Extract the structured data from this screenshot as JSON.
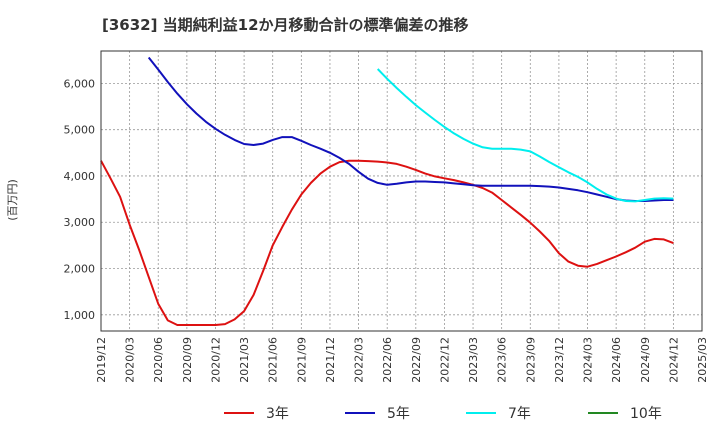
{
  "chart_data": {
    "type": "line",
    "title": "[3632]  当期純利益12か月移動合計の標準偏差の推移",
    "ylabel": "(百万円)",
    "xlabel": "",
    "ylim": [
      650,
      6700
    ],
    "xlim": [
      "2019/12",
      "2025/03"
    ],
    "yticks": [
      1000,
      2000,
      3000,
      4000,
      5000,
      6000
    ],
    "ytick_labels": [
      "1,000",
      "2,000",
      "3,000",
      "4,000",
      "5,000",
      "6,000"
    ],
    "xtick_labels": [
      "2019/12",
      "2020/03",
      "2020/06",
      "2020/09",
      "2020/12",
      "2021/03",
      "2021/06",
      "2021/09",
      "2021/12",
      "2022/03",
      "2022/06",
      "2022/09",
      "2022/12",
      "2023/03",
      "2023/06",
      "2023/09",
      "2023/12",
      "2024/03",
      "2024/06",
      "2024/09",
      "2024/12",
      "2025/03"
    ],
    "grid": true,
    "legend_position": "bottom",
    "series": [
      {
        "name": "3年",
        "color": "#dd1111",
        "x": [
          "2019/12",
          "2020/01",
          "2020/02",
          "2020/03",
          "2020/04",
          "2020/05",
          "2020/06",
          "2020/07",
          "2020/08",
          "2020/09",
          "2020/10",
          "2020/11",
          "2020/12",
          "2021/01",
          "2021/02",
          "2021/03",
          "2021/04",
          "2021/05",
          "2021/06",
          "2021/07",
          "2021/08",
          "2021/09",
          "2021/10",
          "2021/11",
          "2021/12",
          "2022/01",
          "2022/02",
          "2022/03",
          "2022/04",
          "2022/05",
          "2022/06",
          "2022/07",
          "2022/08",
          "2022/09",
          "2022/10",
          "2022/11",
          "2022/12",
          "2023/01",
          "2023/02",
          "2023/03",
          "2023/04",
          "2023/05",
          "2023/06",
          "2023/07",
          "2023/08",
          "2023/09",
          "2023/10",
          "2023/11",
          "2023/12",
          "2024/01",
          "2024/02",
          "2024/03",
          "2024/04",
          "2024/05",
          "2024/06",
          "2024/07",
          "2024/08",
          "2024/09",
          "2024/10",
          "2024/11",
          "2024/12"
        ],
        "values": [
          4330,
          3950,
          3550,
          2950,
          2400,
          1820,
          1240,
          880,
          780,
          780,
          780,
          780,
          780,
          800,
          900,
          1080,
          1430,
          1950,
          2500,
          2900,
          3270,
          3600,
          3850,
          4050,
          4200,
          4300,
          4330,
          4330,
          4320,
          4310,
          4290,
          4260,
          4200,
          4130,
          4050,
          3990,
          3950,
          3910,
          3860,
          3810,
          3740,
          3640,
          3480,
          3320,
          3160,
          2990,
          2800,
          2590,
          2330,
          2150,
          2060,
          2040,
          2100,
          2180,
          2260,
          2350,
          2450,
          2580,
          2640,
          2630,
          2550
        ]
      },
      {
        "name": "5年",
        "color": "#1111bb",
        "x": [
          "2020/05",
          "2020/06",
          "2020/07",
          "2020/08",
          "2020/09",
          "2020/10",
          "2020/11",
          "2020/12",
          "2021/01",
          "2021/02",
          "2021/03",
          "2021/04",
          "2021/05",
          "2021/06",
          "2021/07",
          "2021/08",
          "2021/09",
          "2021/10",
          "2021/11",
          "2021/12",
          "2022/01",
          "2022/02",
          "2022/03",
          "2022/04",
          "2022/05",
          "2022/06",
          "2022/07",
          "2022/08",
          "2022/09",
          "2022/10",
          "2022/11",
          "2022/12",
          "2023/01",
          "2023/02",
          "2023/03",
          "2023/04",
          "2023/05",
          "2023/06",
          "2023/07",
          "2023/08",
          "2023/09",
          "2023/10",
          "2023/11",
          "2023/12",
          "2024/01",
          "2024/02",
          "2024/03",
          "2024/04",
          "2024/05",
          "2024/06",
          "2024/07",
          "2024/08",
          "2024/09",
          "2024/10",
          "2024/11",
          "2024/12"
        ],
        "values": [
          6560,
          6300,
          6030,
          5780,
          5550,
          5350,
          5170,
          5020,
          4890,
          4780,
          4690,
          4670,
          4700,
          4780,
          4840,
          4840,
          4760,
          4670,
          4590,
          4500,
          4390,
          4260,
          4090,
          3940,
          3850,
          3810,
          3830,
          3860,
          3880,
          3880,
          3870,
          3860,
          3840,
          3820,
          3800,
          3790,
          3790,
          3790,
          3790,
          3790,
          3790,
          3780,
          3770,
          3750,
          3720,
          3690,
          3650,
          3600,
          3550,
          3500,
          3470,
          3460,
          3460,
          3470,
          3480,
          3480
        ]
      },
      {
        "name": "7年",
        "color": "#00eeee",
        "x": [
          "2022/05",
          "2022/06",
          "2022/07",
          "2022/08",
          "2022/09",
          "2022/10",
          "2022/11",
          "2022/12",
          "2023/01",
          "2023/02",
          "2023/03",
          "2023/04",
          "2023/05",
          "2023/06",
          "2023/07",
          "2023/08",
          "2023/09",
          "2023/10",
          "2023/11",
          "2023/12",
          "2024/01",
          "2024/02",
          "2024/03",
          "2024/04",
          "2024/05",
          "2024/06",
          "2024/07",
          "2024/08",
          "2024/09",
          "2024/10",
          "2024/11",
          "2024/12"
        ],
        "values": [
          6310,
          6100,
          5900,
          5710,
          5530,
          5370,
          5210,
          5060,
          4920,
          4800,
          4700,
          4620,
          4590,
          4590,
          4590,
          4570,
          4530,
          4420,
          4300,
          4190,
          4080,
          3980,
          3860,
          3720,
          3600,
          3510,
          3460,
          3450,
          3480,
          3510,
          3520,
          3510
        ]
      },
      {
        "name": "10年",
        "color": "#228822",
        "x": [],
        "values": []
      }
    ]
  }
}
